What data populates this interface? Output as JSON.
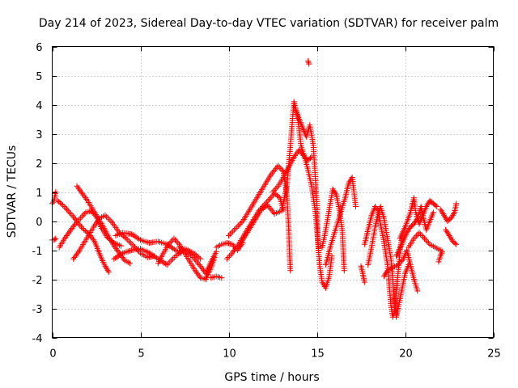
{
  "chart_data": {
    "type": "scatter",
    "title": "Day 214 of 2023, Sidereal Day-to-day VTEC variation (SDTVAR) for receiver palm",
    "xlabel": "GPS time / hours",
    "ylabel": "SDTVAR / TECUs",
    "xlim": [
      0,
      25
    ],
    "ylim": [
      -4,
      6
    ],
    "xticks": [
      0,
      5,
      10,
      15,
      20,
      25
    ],
    "yticks": [
      -4,
      -3,
      -2,
      -1,
      0,
      1,
      2,
      3,
      4,
      5,
      6
    ],
    "grid": true,
    "marker": "plus",
    "colors": {
      "series": "#ff0000",
      "grid": "#a0a0a0",
      "axes": "#000000"
    },
    "series": [
      {
        "name": "SDTVAR",
        "tracks": [
          [
            [
              0.0,
              -0.65
            ],
            [
              0.1,
              -0.65
            ],
            [
              0.2,
              -0.6
            ]
          ],
          [
            [
              0.0,
              0.6
            ],
            [
              0.1,
              0.7
            ],
            [
              0.2,
              1.0
            ]
          ],
          [
            [
              0.3,
              0.7
            ],
            [
              0.6,
              0.55
            ],
            [
              0.9,
              0.35
            ],
            [
              1.2,
              0.15
            ],
            [
              1.5,
              -0.1
            ],
            [
              1.8,
              -0.3
            ],
            [
              2.1,
              -0.45
            ],
            [
              2.4,
              -0.7
            ],
            [
              2.6,
              -1.0
            ],
            [
              2.8,
              -1.3
            ],
            [
              3.0,
              -1.55
            ],
            [
              3.2,
              -1.75
            ]
          ],
          [
            [
              0.4,
              -0.9
            ],
            [
              0.7,
              -0.6
            ],
            [
              1.0,
              -0.35
            ],
            [
              1.3,
              -0.1
            ],
            [
              1.6,
              0.1
            ],
            [
              1.9,
              0.3
            ],
            [
              2.2,
              0.35
            ],
            [
              2.5,
              0.15
            ],
            [
              2.8,
              -0.25
            ],
            [
              3.1,
              -0.55
            ],
            [
              3.5,
              -0.75
            ],
            [
              3.9,
              -0.85
            ]
          ],
          [
            [
              1.2,
              -1.3
            ],
            [
              1.5,
              -1.05
            ],
            [
              1.8,
              -0.75
            ],
            [
              2.1,
              -0.45
            ],
            [
              2.4,
              -0.15
            ],
            [
              2.7,
              0.1
            ],
            [
              3.0,
              0.2
            ],
            [
              3.4,
              -0.05
            ],
            [
              3.8,
              -0.4
            ],
            [
              4.2,
              -0.6
            ],
            [
              4.6,
              -0.85
            ],
            [
              5.0,
              -1.1
            ],
            [
              5.4,
              -1.25
            ],
            [
              5.8,
              -1.2
            ]
          ],
          [
            [
              1.4,
              1.2
            ],
            [
              1.7,
              0.95
            ],
            [
              2.0,
              0.7
            ],
            [
              2.3,
              0.4
            ],
            [
              2.6,
              0.1
            ],
            [
              2.9,
              -0.2
            ],
            [
              3.2,
              -0.55
            ],
            [
              3.5,
              -0.85
            ],
            [
              3.8,
              -1.1
            ],
            [
              4.1,
              -1.35
            ],
            [
              4.4,
              -1.45
            ]
          ],
          [
            [
              3.5,
              -1.3
            ],
            [
              4.0,
              -1.1
            ],
            [
              4.5,
              -1.0
            ],
            [
              5.0,
              -0.95
            ],
            [
              5.5,
              -1.1
            ],
            [
              6.0,
              -1.3
            ],
            [
              6.5,
              -1.5
            ],
            [
              7.0,
              -1.2
            ],
            [
              7.5,
              -0.95
            ],
            [
              8.0,
              -1.1
            ],
            [
              8.4,
              -1.3
            ]
          ],
          [
            [
              3.6,
              -0.5
            ],
            [
              4.0,
              -0.4
            ],
            [
              4.5,
              -0.45
            ],
            [
              5.0,
              -0.65
            ],
            [
              5.5,
              -0.75
            ],
            [
              6.0,
              -0.7
            ],
            [
              6.5,
              -0.8
            ],
            [
              7.0,
              -1.0
            ],
            [
              7.3,
              -1.1
            ]
          ],
          [
            [
              6.0,
              -1.45
            ],
            [
              6.3,
              -1.1
            ],
            [
              6.6,
              -0.8
            ],
            [
              6.9,
              -0.6
            ],
            [
              7.2,
              -0.8
            ],
            [
              7.5,
              -1.1
            ],
            [
              7.8,
              -1.4
            ],
            [
              8.1,
              -1.7
            ],
            [
              8.4,
              -1.95
            ],
            [
              8.7,
              -2.0
            ],
            [
              9.0,
              -1.6
            ],
            [
              9.2,
              -1.25
            ]
          ],
          [
            [
              7.2,
              -0.9
            ],
            [
              7.6,
              -1.05
            ],
            [
              8.0,
              -1.25
            ],
            [
              8.4,
              -1.55
            ],
            [
              8.7,
              -1.8
            ],
            [
              9.0,
              -1.4
            ],
            [
              9.3,
              -1.05
            ]
          ],
          [
            [
              9.0,
              -1.95
            ],
            [
              9.3,
              -1.9
            ],
            [
              9.6,
              -1.95
            ]
          ],
          [
            [
              9.3,
              -0.9
            ],
            [
              9.6,
              -0.8
            ],
            [
              9.9,
              -0.75
            ],
            [
              10.2,
              -0.8
            ],
            [
              10.5,
              -1.0
            ],
            [
              10.8,
              -0.75
            ]
          ],
          [
            [
              9.9,
              -1.3
            ],
            [
              10.2,
              -1.1
            ],
            [
              10.5,
              -0.85
            ],
            [
              10.8,
              -0.55
            ],
            [
              11.1,
              -0.25
            ],
            [
              11.4,
              0.05
            ],
            [
              11.7,
              0.35
            ],
            [
              12.0,
              0.55
            ],
            [
              12.3,
              0.75
            ],
            [
              12.6,
              0.95
            ],
            [
              12.9,
              0.8
            ],
            [
              13.1,
              0.4
            ]
          ],
          [
            [
              10.0,
              -0.5
            ],
            [
              10.4,
              -0.25
            ],
            [
              10.8,
              0.0
            ],
            [
              11.2,
              0.4
            ],
            [
              11.6,
              0.8
            ],
            [
              12.0,
              1.2
            ],
            [
              12.4,
              1.6
            ],
            [
              12.8,
              1.9
            ],
            [
              13.1,
              1.7
            ],
            [
              13.3,
              0.9
            ],
            [
              13.4,
              -0.2
            ],
            [
              13.45,
              -1.1
            ],
            [
              13.5,
              -1.7
            ]
          ],
          [
            [
              10.6,
              -0.85
            ],
            [
              11.0,
              -0.45
            ],
            [
              11.4,
              -0.05
            ],
            [
              11.8,
              0.35
            ],
            [
              12.2,
              0.55
            ],
            [
              12.6,
              0.25
            ],
            [
              13.0,
              0.35
            ],
            [
              13.3,
              1.2
            ],
            [
              13.5,
              2.6
            ],
            [
              13.7,
              4.1
            ],
            [
              13.9,
              3.6
            ],
            [
              14.1,
              2.6
            ],
            [
              14.3,
              2.2
            ],
            [
              14.5,
              2.1
            ],
            [
              14.7,
              2.2
            ]
          ],
          [
            [
              12.5,
              1.0
            ],
            [
              12.8,
              1.2
            ],
            [
              13.1,
              1.5
            ],
            [
              13.4,
              1.85
            ],
            [
              13.7,
              2.2
            ],
            [
              14.0,
              2.45
            ],
            [
              14.3,
              2.2
            ],
            [
              14.5,
              1.75
            ],
            [
              14.7,
              1.2
            ],
            [
              14.9,
              0.4
            ],
            [
              15.0,
              -0.3
            ],
            [
              15.1,
              -1.0
            ]
          ],
          [
            [
              13.8,
              3.8
            ],
            [
              14.0,
              3.5
            ],
            [
              14.2,
              3.2
            ],
            [
              14.4,
              2.9
            ],
            [
              14.6,
              3.3
            ],
            [
              14.8,
              2.6
            ],
            [
              14.9,
              1.6
            ],
            [
              15.0,
              0.6
            ],
            [
              15.05,
              -0.6
            ],
            [
              15.15,
              -1.5
            ],
            [
              15.3,
              -2.1
            ],
            [
              15.5,
              -2.3
            ],
            [
              15.7,
              -1.9
            ],
            [
              15.85,
              -1.2
            ]
          ],
          [
            [
              14.5,
              5.5
            ],
            [
              14.55,
              5.4
            ]
          ],
          [
            [
              15.3,
              -0.9
            ],
            [
              15.5,
              -0.3
            ],
            [
              15.7,
              0.4
            ],
            [
              15.9,
              1.1
            ],
            [
              16.1,
              0.9
            ],
            [
              16.3,
              0.3
            ],
            [
              16.45,
              -0.4
            ],
            [
              16.5,
              -1.1
            ],
            [
              16.55,
              -1.7
            ]
          ],
          [
            [
              15.5,
              -1.5
            ],
            [
              15.8,
              -0.8
            ],
            [
              16.1,
              -0.2
            ],
            [
              16.4,
              0.4
            ],
            [
              16.6,
              0.8
            ],
            [
              16.8,
              1.3
            ],
            [
              17.0,
              1.5
            ],
            [
              17.1,
              1.0
            ],
            [
              17.2,
              0.5
            ]
          ],
          [
            [
              17.5,
              -1.55
            ],
            [
              17.6,
              -1.8
            ],
            [
              17.7,
              -2.1
            ]
          ],
          [
            [
              17.7,
              -0.8
            ],
            [
              17.9,
              -0.3
            ],
            [
              18.1,
              0.2
            ],
            [
              18.3,
              0.5
            ],
            [
              18.5,
              0.35
            ],
            [
              18.6,
              -0.1
            ],
            [
              18.8,
              -0.7
            ],
            [
              19.0,
              -1.5
            ],
            [
              19.1,
              -2.2
            ],
            [
              19.2,
              -2.9
            ],
            [
              19.3,
              -3.3
            ],
            [
              19.4,
              -3.1
            ],
            [
              19.5,
              -2.5
            ],
            [
              19.6,
              -1.8
            ],
            [
              19.7,
              -1.1
            ],
            [
              19.8,
              -0.6
            ]
          ],
          [
            [
              17.9,
              -1.5
            ],
            [
              18.1,
              -0.9
            ],
            [
              18.3,
              -0.2
            ],
            [
              18.5,
              0.3
            ],
            [
              18.6,
              0.5
            ],
            [
              18.8,
              0.1
            ],
            [
              19.0,
              -0.6
            ],
            [
              19.2,
              -1.3
            ],
            [
              19.3,
              -2.0
            ],
            [
              19.4,
              -2.8
            ],
            [
              19.5,
              -3.3
            ],
            [
              19.6,
              -3.0
            ],
            [
              19.8,
              -2.4
            ],
            [
              20.0,
              -1.8
            ],
            [
              20.2,
              -1.5
            ]
          ],
          [
            [
              18.8,
              -1.9
            ],
            [
              19.0,
              -1.7
            ],
            [
              19.3,
              -1.6
            ],
            [
              19.6,
              -1.5
            ],
            [
              19.9,
              -1.3
            ],
            [
              20.1,
              -1.0
            ],
            [
              20.3,
              -1.5
            ],
            [
              20.5,
              -2.0
            ],
            [
              20.7,
              -2.4
            ]
          ],
          [
            [
              19.5,
              -1.2
            ],
            [
              19.8,
              -0.8
            ],
            [
              20.1,
              -0.4
            ],
            [
              20.3,
              -0.2
            ],
            [
              20.5,
              -0.1
            ],
            [
              20.7,
              0.1
            ],
            [
              20.9,
              0.5
            ],
            [
              21.0,
              0.2
            ],
            [
              21.2,
              -0.3
            ],
            [
              21.4,
              0.0
            ],
            [
              21.6,
              0.3
            ]
          ],
          [
            [
              19.7,
              -0.6
            ],
            [
              20.0,
              -0.2
            ],
            [
              20.3,
              0.3
            ],
            [
              20.5,
              0.8
            ],
            [
              20.6,
              0.3
            ],
            [
              20.8,
              -0.1
            ],
            [
              21.0,
              0.2
            ],
            [
              21.2,
              0.5
            ],
            [
              21.4,
              0.7
            ],
            [
              21.6,
              0.6
            ],
            [
              21.8,
              0.5
            ]
          ],
          [
            [
              20.2,
              -0.9
            ],
            [
              20.5,
              -0.6
            ],
            [
              20.8,
              -0.4
            ],
            [
              21.1,
              -0.6
            ],
            [
              21.4,
              -0.8
            ],
            [
              21.7,
              -0.9
            ],
            [
              22.0,
              -1.0
            ]
          ],
          [
            [
              21.9,
              -1.4
            ],
            [
              22.0,
              -1.2
            ],
            [
              22.1,
              -1.05
            ]
          ],
          [
            [
              22.0,
              0.4
            ],
            [
              22.2,
              0.2
            ],
            [
              22.4,
              0.0
            ],
            [
              22.6,
              0.1
            ],
            [
              22.8,
              0.3
            ],
            [
              22.9,
              0.6
            ]
          ],
          [
            [
              22.3,
              -0.3
            ],
            [
              22.5,
              -0.5
            ],
            [
              22.7,
              -0.7
            ],
            [
              22.9,
              -0.8
            ]
          ]
        ]
      }
    ]
  }
}
